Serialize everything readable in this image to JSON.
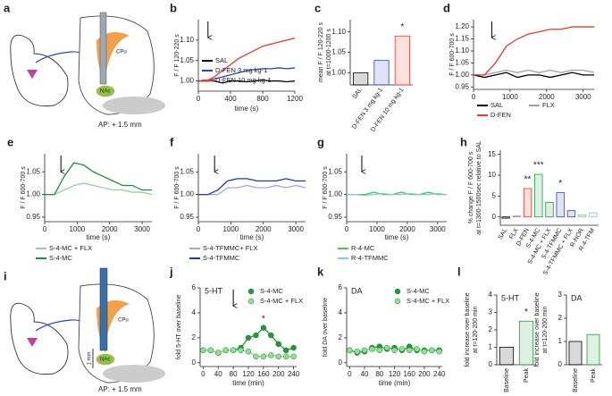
{
  "illustrations": [
    {
      "panel": "a",
      "labels": [
        "CPu",
        "NAc"
      ],
      "caption": "AP: + 1.5 mm"
    },
    {
      "panel": "i",
      "labels": [
        "CPu",
        "NAc"
      ],
      "scale": "1 mm",
      "caption": "AP: + 1.5 mm"
    }
  ],
  "chart_data": [
    {
      "panel": "b",
      "type": "line",
      "xlabel": "time (s)",
      "ylabel": "F / F 120-220 s",
      "xlim": [
        0,
        1200
      ],
      "xticks": [
        0,
        400,
        800,
        1200
      ],
      "ylim": [
        0.975,
        1.15
      ],
      "yticks": [
        {
          "value": 1,
          "label": "1.00"
        },
        1.05,
        {
          "value": 1.1,
          "label": "1.10"
        }
      ],
      "arrow_x": 120,
      "x": [
        0,
        100,
        200,
        300,
        400,
        500,
        600,
        700,
        800,
        900,
        1000,
        1100,
        1200
      ],
      "series": [
        {
          "name": "SAL",
          "color": "#000000",
          "values": [
            1.0,
            1.0,
            1.0,
            0.995,
            1.0,
            1.0,
            0.998,
            1.0,
            1.002,
            1.0,
            1.0,
            0.998,
            1.0
          ]
        },
        {
          "name": "D-FEN 3 mg kg-1",
          "color": "#2846c8",
          "values": [
            1.0,
            1.0,
            1.005,
            1.01,
            1.015,
            1.02,
            1.025,
            1.028,
            1.03,
            1.03,
            1.032,
            1.03,
            1.032
          ]
        },
        {
          "name": "D-FEN 10 mg kg-1",
          "color": "#e8382b",
          "values": [
            1.0,
            1.0,
            1.01,
            1.025,
            1.04,
            1.055,
            1.065,
            1.075,
            1.085,
            1.09,
            1.095,
            1.1,
            1.105
          ]
        }
      ]
    },
    {
      "panel": "c",
      "type": "bar",
      "ylabel": [
        "mean F / F 120-220 s",
        "at t=1000-1200 s"
      ],
      "ylim": [
        0.97,
        1.13
      ],
      "yticks": [
        {
          "value": 1,
          "label": "1.00"
        },
        1.05,
        {
          "value": 1.1,
          "label": "1.10"
        }
      ],
      "categories": [
        "SAL",
        "D-FEN 3 mg kg-1",
        "D-FEN 10 mg kg-1"
      ],
      "values": [
        1.0,
        1.03,
        1.09
      ],
      "colors": [
        "#000000",
        "#2846c8",
        "#e8382b"
      ],
      "annotations": [
        {
          "x": "D-FEN 10 mg kg-1",
          "text": "*"
        }
      ]
    },
    {
      "panel": "d",
      "type": "line",
      "ylabel": "F / F 600-700 s",
      "xlim": [
        0,
        3300
      ],
      "xticks": [
        0,
        1000,
        2000,
        3000
      ],
      "ylim": [
        0.94,
        1.23
      ],
      "yticks": [
        0.95,
        {
          "value": 1,
          "label": "1.00"
        },
        1.05,
        {
          "value": 1.1,
          "label": "1.10"
        },
        1.15,
        {
          "value": 1.2,
          "label": "1.20"
        }
      ],
      "arrow_x": 500,
      "x": [
        0,
        300,
        600,
        900,
        1200,
        1500,
        1800,
        2100,
        2400,
        2700,
        3000,
        3300
      ],
      "series": [
        {
          "name": "SAL",
          "color": "#000000",
          "values": [
            1.0,
            0.99,
            1.0,
            1.01,
            0.99,
            1.0,
            1.0,
            0.99,
            1.0,
            1.01,
            1.0,
            1.0
          ]
        },
        {
          "name": "FLX",
          "color": "#a0a0a0",
          "values": [
            1.0,
            1.0,
            1.01,
            1.02,
            1.01,
            1.02,
            1.01,
            1.02,
            1.01,
            1.02,
            1.02,
            1.01
          ]
        },
        {
          "name": "D-FEN",
          "color": "#e8382b",
          "values": [
            1.0,
            1.0,
            1.05,
            1.12,
            1.15,
            1.17,
            1.18,
            1.19,
            1.19,
            1.2,
            1.2,
            1.2
          ]
        }
      ]
    },
    {
      "panel": "e",
      "type": "line",
      "xlabel": "time (s)",
      "ylabel": "F / F 600-700 s",
      "xlim": [
        0,
        3300
      ],
      "xticks": [
        0,
        1000,
        2000,
        3000
      ],
      "ylim": [
        0.94,
        1.09
      ],
      "yticks": [
        0.95,
        {
          "value": 1,
          "label": "1.00"
        },
        1.05
      ],
      "arrow_x": 500,
      "x": [
        0,
        300,
        600,
        900,
        1200,
        1500,
        1800,
        2100,
        2400,
        2700,
        3000,
        3300
      ],
      "series": [
        {
          "name": "S-4-MC + FLX",
          "color": "#8fd19e",
          "values": [
            1.0,
            1.0,
            1.01,
            1.02,
            1.025,
            1.02,
            1.015,
            1.01,
            1.01,
            1.005,
            1.005,
            1.0
          ]
        },
        {
          "name": "S-4-MC",
          "color": "#1e8a45",
          "values": [
            1.0,
            1.0,
            1.04,
            1.07,
            1.065,
            1.05,
            1.04,
            1.03,
            1.02,
            1.02,
            1.01,
            1.01
          ]
        }
      ]
    },
    {
      "panel": "f",
      "type": "line",
      "xlabel": "time (s)",
      "ylabel": "F / F 600-700 s",
      "xlim": [
        0,
        3300
      ],
      "xticks": [
        0,
        1000,
        2000,
        3000
      ],
      "ylim": [
        0.94,
        1.09
      ],
      "yticks": [
        0.95,
        {
          "value": 1,
          "label": "1.00"
        },
        1.05
      ],
      "arrow_x": 500,
      "x": [
        0,
        300,
        600,
        900,
        1200,
        1500,
        1800,
        2100,
        2400,
        2700,
        3000,
        3300
      ],
      "series": [
        {
          "name": "S-4-TFMMC+ FLX",
          "color": "#9aa8f0",
          "values": [
            1.0,
            1.0,
            1.0,
            1.015,
            1.015,
            1.02,
            1.015,
            1.015,
            1.02,
            1.015,
            1.02,
            1.015
          ]
        },
        {
          "name": "S-4-TFMMC",
          "color": "#2233cc",
          "values": [
            1.0,
            1.0,
            1.01,
            1.03,
            1.035,
            1.035,
            1.03,
            1.03,
            1.03,
            1.035,
            1.03,
            1.03
          ]
        }
      ]
    },
    {
      "panel": "g",
      "type": "line",
      "xlabel": "time (s)",
      "ylabel": "F / F 600-700 s",
      "xlim": [
        0,
        3300
      ],
      "xticks": [
        0,
        1000,
        2000,
        3000
      ],
      "ylim": [
        0.94,
        1.09
      ],
      "yticks": [
        0.95,
        {
          "value": 1,
          "label": "1.00"
        },
        1.05
      ],
      "arrow_x": 500,
      "x": [
        0,
        300,
        600,
        900,
        1200,
        1500,
        1800,
        2100,
        2400,
        2700,
        3000,
        3300
      ],
      "series": [
        {
          "name": "R-4-MC",
          "color": "#3fcf3f",
          "values": [
            1.0,
            1.0,
            1.0,
            1.005,
            1.0,
            1.0,
            1.005,
            1.0,
            1.0,
            1.005,
            1.0,
            1.0
          ]
        },
        {
          "name": "R-4-TFMMC",
          "color": "#7fc8e8",
          "values": [
            1.0,
            1.0,
            0.998,
            1.0,
            1.002,
            1.0,
            1.0,
            1.002,
            1.0,
            1.0,
            1.002,
            1.0
          ]
        }
      ]
    },
    {
      "panel": "h",
      "type": "bar",
      "ylabel": [
        "% change F / F 600-700 s",
        "at t=1300-1500sec relative to SAL"
      ],
      "ylim": [
        -2,
        16
      ],
      "yticks": [
        0,
        5,
        10,
        15
      ],
      "categories": [
        "SAL",
        "FLX",
        "D-FEN",
        "S-4-MC",
        "S-4-MC + FLX",
        "S-4-TFMMC",
        "S-4-TFMMC + FLX",
        "R-NOR",
        "R-4-TFM"
      ],
      "values": [
        -0.3,
        0.2,
        6.8,
        10.2,
        3.5,
        5.8,
        1.5,
        0.5,
        1.0
      ],
      "colors": [
        "#000000",
        "#999999",
        "#e8382b",
        "#1e9a4d",
        "#2f8f3a",
        "#2846c8",
        "#2846c8",
        "#7fc68a",
        "#8fc3e8"
      ],
      "annotations": [
        {
          "x": "D-FEN",
          "text": "**"
        },
        {
          "x": "S-4-MC",
          "text": "***"
        },
        {
          "x": "S-4-TFMMC",
          "text": "*"
        }
      ]
    },
    {
      "panel": "j",
      "type": "line",
      "markers": true,
      "title": "5-HT",
      "xlabel": "time (min)",
      "ylabel": "fold 5-HT over baseline",
      "xlim": [
        -8,
        248
      ],
      "xticks": [
        0,
        40,
        80,
        120,
        160,
        200,
        240
      ],
      "ylim": [
        -0.3,
        6
      ],
      "yticks": [
        0,
        2,
        4,
        6
      ],
      "arrow_x": 80,
      "x": [
        0,
        20,
        40,
        60,
        80,
        100,
        120,
        140,
        160,
        180,
        200,
        220,
        240
      ],
      "series": [
        {
          "name": "S-4-MC",
          "color": "#1e9a3a",
          "values": [
            1,
            1,
            0.8,
            1,
            1,
            1.2,
            2,
            2.2,
            2.8,
            2.2,
            1.5,
            1,
            1.2
          ]
        },
        {
          "name": "S-4-MC + FLX",
          "color": "#8fe08f",
          "values": [
            1,
            1,
            0.8,
            1,
            1,
            1,
            0.9,
            0.5,
            0.5,
            0.6,
            0.5,
            0.5,
            0.5
          ]
        }
      ],
      "annotations": [
        {
          "x": 160,
          "text": "*"
        }
      ]
    },
    {
      "panel": "k",
      "type": "line",
      "markers": true,
      "title": "DA",
      "xlabel": "time (min)",
      "ylabel": "fold DA over baseline",
      "xlim": [
        -8,
        248
      ],
      "xticks": [
        0,
        40,
        80,
        120,
        160,
        200,
        240
      ],
      "ylim": [
        -0.3,
        6
      ],
      "yticks": [
        0,
        2,
        4,
        6
      ],
      "x": [
        0,
        20,
        40,
        60,
        80,
        100,
        120,
        140,
        160,
        180,
        200,
        220,
        240
      ],
      "series": [
        {
          "name": "S-4-MC",
          "color": "#1e9a3a",
          "values": [
            1,
            0.8,
            0.9,
            1.2,
            1.3,
            1.1,
            1.2,
            1.0,
            1.3,
            1.0,
            1.0,
            1.0,
            1.0
          ]
        },
        {
          "name": "S-4-MC + FLX",
          "color": "#8fe08f",
          "values": [
            1,
            0.9,
            1.0,
            1.1,
            1.0,
            1.2,
            1.0,
            1.1,
            1.0,
            1.1,
            0.9,
            1.0,
            0.9
          ]
        }
      ]
    },
    {
      "panel": "l",
      "type": "bar",
      "title": "5-HT",
      "ylabel": [
        "fold increase over baseline",
        "at t=120-200 min"
      ],
      "ylim": [
        0,
        4
      ],
      "yticks": [
        0,
        1,
        2,
        3,
        4
      ],
      "categories": [
        "Baseline",
        "Peak"
      ],
      "values": [
        1,
        2.5
      ],
      "colors": [
        "#000000",
        "#1e9a3a"
      ],
      "annotations": [
        {
          "x": "Peak",
          "text": "*"
        }
      ]
    },
    {
      "type": "bar",
      "title": "DA",
      "ylabel": [
        "fold increase over baseline",
        "at t=120-200 min"
      ],
      "ylim": [
        0,
        3
      ],
      "yticks": [
        0,
        1,
        2,
        3
      ],
      "categories": [
        "Baseline",
        "Peak"
      ],
      "values": [
        1,
        1.3
      ],
      "colors": [
        "#000000",
        "#1e9a3a"
      ]
    }
  ]
}
